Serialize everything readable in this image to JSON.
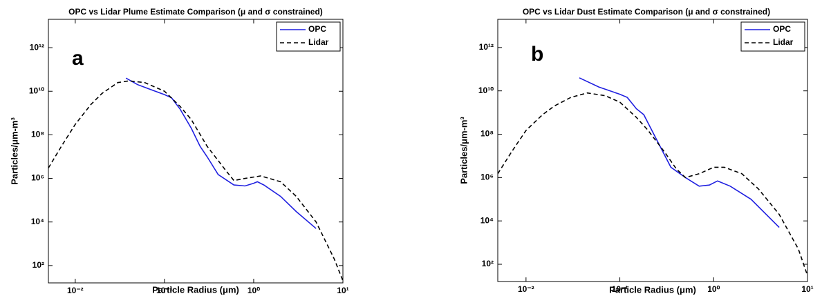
{
  "chart_data": [
    {
      "type": "line",
      "panel_label": "a",
      "title": "OPC vs Lidar Plume Estimate Comparison (μ and σ constrained)",
      "xlabel": "Particle Radius (μm)",
      "ylabel": "Particles/μm-m³",
      "xscale": "log",
      "yscale": "log",
      "xlim": [
        0.005,
        10
      ],
      "ylim": [
        16,
        20000000000000
      ],
      "xticks": [
        {
          "value": 0.01,
          "label": "10⁻²"
        },
        {
          "value": 0.1,
          "label": "10⁻¹"
        },
        {
          "value": 1,
          "label": "10⁰"
        },
        {
          "value": 10,
          "label": "10¹"
        }
      ],
      "yticks": [
        {
          "value": 100,
          "label": "10²"
        },
        {
          "value": 10000,
          "label": "10⁴"
        },
        {
          "value": 1000000,
          "label": "10⁶"
        },
        {
          "value": 100000000,
          "label": "10⁸"
        },
        {
          "value": 10000000000,
          "label": "10¹⁰"
        },
        {
          "value": 1000000000000,
          "label": "10¹²"
        }
      ],
      "legend": "upper right",
      "series": [
        {
          "name": "OPC",
          "color": "#1f1fe0",
          "dash": "solid",
          "x": [
            0.037,
            0.05,
            0.07,
            0.1,
            0.12,
            0.15,
            0.2,
            0.25,
            0.3,
            0.4,
            0.6,
            0.8,
            1.0,
            1.1,
            1.3,
            2,
            3,
            5
          ],
          "values": [
            40000000000,
            20000000000,
            12000000000,
            7000000000,
            5000000000,
            1500000000,
            200000000,
            30000000,
            10000000,
            1500000,
            500000,
            450000,
            600000,
            700000,
            500000,
            150000,
            30000,
            5000
          ]
        },
        {
          "name": "Lidar",
          "color": "#000000",
          "dash": "dashed",
          "x": [
            0.005,
            0.007,
            0.01,
            0.015,
            0.02,
            0.03,
            0.04,
            0.06,
            0.1,
            0.15,
            0.2,
            0.3,
            0.5,
            0.6,
            0.8,
            1.2,
            2,
            3,
            5,
            8,
            10
          ],
          "values": [
            3000000,
            30000000,
            300000000,
            2500000000,
            8000000000,
            25000000000,
            30000000000,
            25000000000,
            10000000000,
            2000000000,
            500000000,
            30000000,
            2000000,
            800000,
            1000000,
            1300000,
            700000,
            150000,
            10000,
            200,
            20
          ]
        }
      ]
    },
    {
      "type": "line",
      "panel_label": "b",
      "title": "OPC vs Lidar Dust Estimate Comparison (μ and σ constrained)",
      "xlabel": "Particle Radius (μm)",
      "ylabel": "Particles/μm-m³",
      "xscale": "log",
      "yscale": "log",
      "xlim": [
        0.005,
        10
      ],
      "ylim": [
        16,
        20000000000000
      ],
      "xticks": [
        {
          "value": 0.01,
          "label": "10⁻²"
        },
        {
          "value": 0.1,
          "label": "10⁻¹"
        },
        {
          "value": 1,
          "label": "10⁰"
        },
        {
          "value": 10,
          "label": "10¹"
        }
      ],
      "yticks": [
        {
          "value": 100,
          "label": "10²"
        },
        {
          "value": 10000,
          "label": "10⁴"
        },
        {
          "value": 1000000,
          "label": "10⁶"
        },
        {
          "value": 100000000,
          "label": "10⁸"
        },
        {
          "value": 10000000000,
          "label": "10¹⁰"
        },
        {
          "value": 1000000000000,
          "label": "10¹²"
        }
      ],
      "legend": "upper right",
      "series": [
        {
          "name": "OPC",
          "color": "#1f1fe0",
          "dash": "solid",
          "x": [
            0.037,
            0.06,
            0.1,
            0.12,
            0.15,
            0.18,
            0.25,
            0.35,
            0.5,
            0.7,
            0.9,
            1.1,
            1.5,
            2.5,
            5
          ],
          "values": [
            40000000000,
            15000000000,
            7000000000,
            5000000000,
            1500000000,
            800000000,
            50000000,
            3000000,
            1000000,
            400000,
            450000,
            700000,
            400000,
            100000,
            5000
          ]
        },
        {
          "name": "Lidar",
          "color": "#000000",
          "dash": "dashed",
          "x": [
            0.005,
            0.007,
            0.01,
            0.015,
            0.02,
            0.03,
            0.045,
            0.07,
            0.1,
            0.15,
            0.2,
            0.3,
            0.4,
            0.5,
            0.7,
            1,
            1.3,
            2,
            3,
            5,
            8,
            10
          ],
          "values": [
            1500000,
            15000000,
            150000000,
            800000000,
            2000000000,
            5000000000,
            8000000000,
            6000000000,
            3000000000,
            600000000,
            150000000,
            15000000,
            2500000,
            1000000,
            1500000,
            3000000,
            3000000,
            1500000,
            300000,
            20000,
            500,
            30
          ]
        }
      ]
    }
  ]
}
